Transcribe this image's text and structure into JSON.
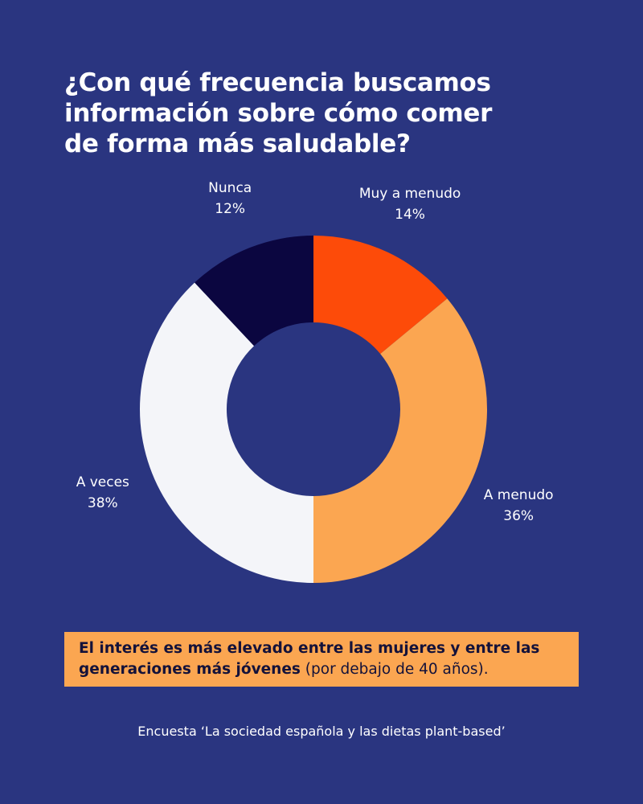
{
  "title_lines": [
    "¿Con qué frecuencia buscamos",
    "información sobre cómo comer",
    "de forma más saludable?"
  ],
  "chart_data": {
    "type": "pie",
    "title": "¿Con qué frecuencia buscamos información sobre cómo comer de forma más saludable?",
    "donut": true,
    "slices": [
      {
        "label": "Muy a menudo",
        "value": 14,
        "display": "14%",
        "color": "#fd4b09"
      },
      {
        "label": "A menudo",
        "value": 36,
        "display": "36%",
        "color": "#fba651"
      },
      {
        "label": "A veces",
        "value": 38,
        "display": "38%",
        "color": "#f4f5f9"
      },
      {
        "label": "Nunca",
        "value": 12,
        "display": "12%",
        "color": "#0b0640"
      }
    ]
  },
  "callout": {
    "bold_text": "El interés es más elevado entre las mujeres y entre las generaciones más jóvenes",
    "bold_line1": "El interés es más elevado entre las mujeres y entre las",
    "bold_line2": "generaciones más jóvenes",
    "normal_text": " (por debajo de 40 años)."
  },
  "source": "Encuesta ‘La sociedad española y las dietas plant-based’",
  "colors": {
    "background": "#2a3580",
    "text": "#ffffff",
    "callout_bg": "#fba651",
    "callout_text": "#14123a"
  }
}
